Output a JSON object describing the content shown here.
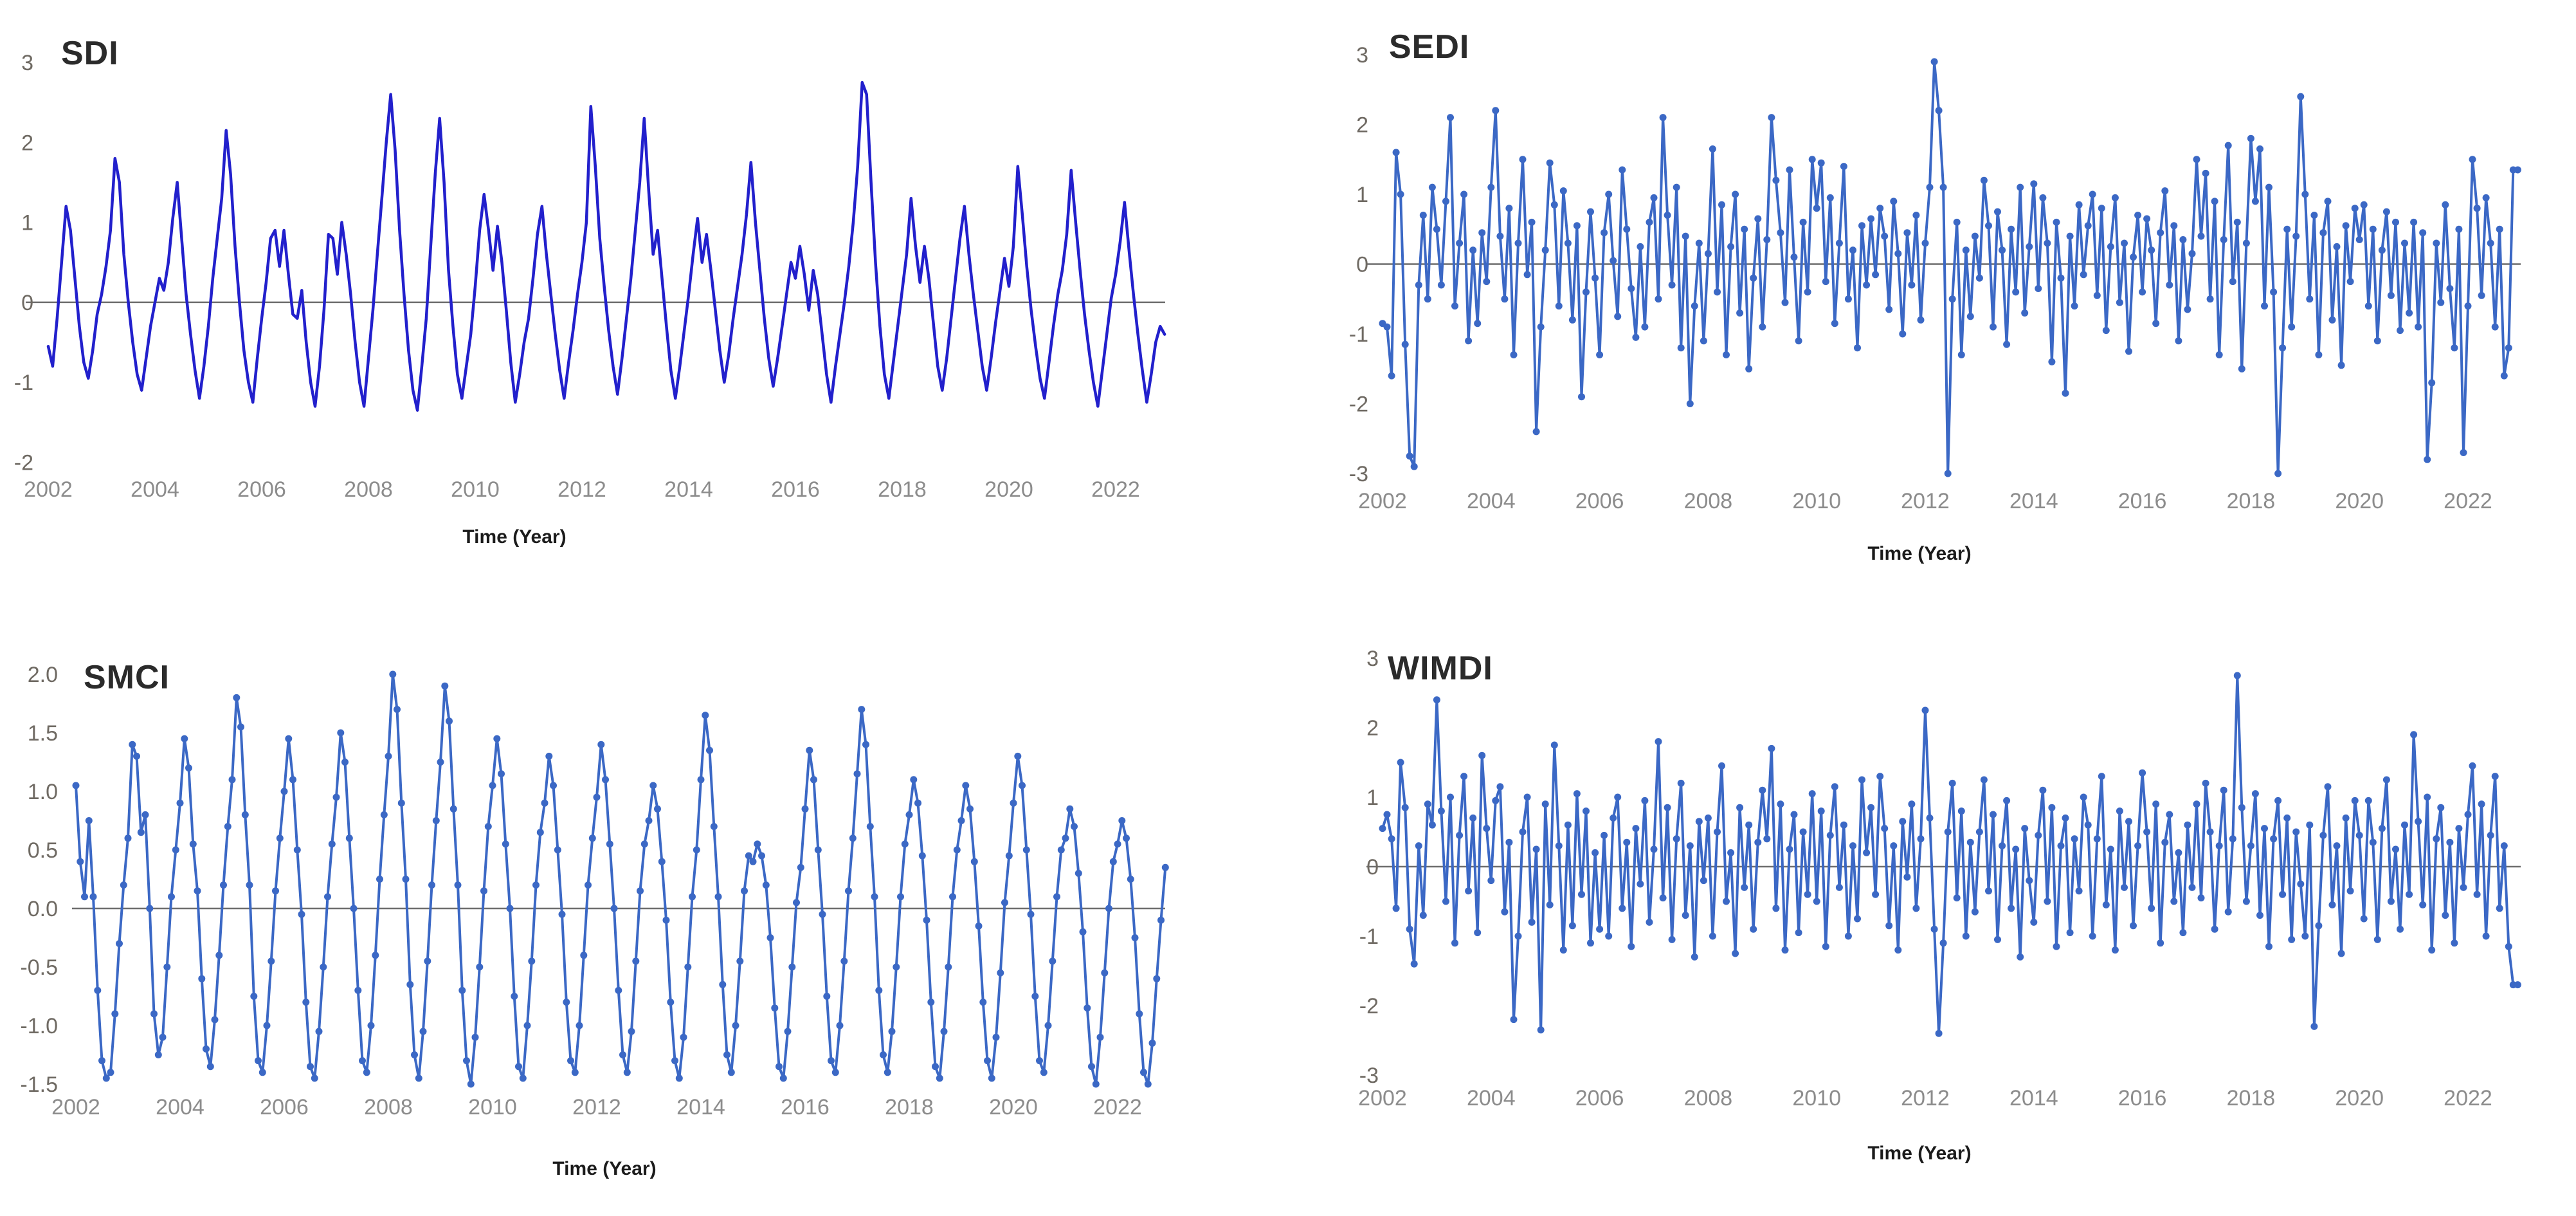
{
  "page": {
    "background": "#ffffff",
    "title_color": "#2b2b2b",
    "ytick_color": "#6f6a63",
    "xtick_color": "#8c8c8c",
    "xlabel_color": "#1b1b1b",
    "zero_line_color": "#6e6e6e"
  },
  "chart_data": [
    {
      "type": "line",
      "title": "SDI",
      "xlabel": "Time (Year)",
      "legend": "none",
      "grid": false,
      "marker": false,
      "line_color": "#2220cc",
      "x_start": 2002.0,
      "points_per_year": 12,
      "xlim": [
        2002,
        2023
      ],
      "ylim": [
        -2,
        3
      ],
      "yticks": [
        3,
        2,
        1,
        0,
        -1,
        -2
      ],
      "ytick_labels": [
        "3",
        "2",
        "1",
        "0",
        "-1",
        "-2"
      ],
      "xticks": [
        2002,
        2004,
        2006,
        2008,
        2010,
        2012,
        2014,
        2016,
        2018,
        2020,
        2022
      ],
      "xtick_labels": [
        "2002",
        "2004",
        "2006",
        "2008",
        "2010",
        "2012",
        "2014",
        "2016",
        "2018",
        "2020",
        "2022"
      ],
      "values": [
        -0.55,
        -0.8,
        -0.2,
        0.5,
        1.2,
        0.9,
        0.3,
        -0.3,
        -0.75,
        -0.95,
        -0.6,
        -0.15,
        0.1,
        0.45,
        0.9,
        1.8,
        1.5,
        0.6,
        0.0,
        -0.5,
        -0.9,
        -1.1,
        -0.7,
        -0.3,
        0.0,
        0.3,
        0.15,
        0.5,
        1.05,
        1.5,
        0.8,
        0.1,
        -0.4,
        -0.85,
        -1.2,
        -0.8,
        -0.3,
        0.3,
        0.8,
        1.3,
        2.15,
        1.6,
        0.7,
        0.0,
        -0.6,
        -1.0,
        -1.25,
        -0.7,
        -0.2,
        0.25,
        0.8,
        0.9,
        0.45,
        0.9,
        0.35,
        -0.15,
        -0.2,
        0.15,
        -0.5,
        -1.0,
        -1.3,
        -0.8,
        -0.1,
        0.85,
        0.8,
        0.35,
        1.0,
        0.6,
        0.1,
        -0.5,
        -1.0,
        -1.3,
        -0.7,
        -0.1,
        0.6,
        1.3,
        2.0,
        2.6,
        1.9,
        0.9,
        0.1,
        -0.6,
        -1.1,
        -1.35,
        -0.8,
        -0.2,
        0.7,
        1.6,
        2.3,
        1.5,
        0.4,
        -0.3,
        -0.9,
        -1.2,
        -0.8,
        -0.4,
        0.2,
        0.9,
        1.35,
        0.9,
        0.4,
        0.95,
        0.5,
        -0.1,
        -0.75,
        -1.25,
        -0.9,
        -0.5,
        -0.2,
        0.3,
        0.85,
        1.2,
        0.6,
        0.1,
        -0.4,
        -0.85,
        -1.2,
        -0.75,
        -0.35,
        0.1,
        0.5,
        1.0,
        2.45,
        1.7,
        0.8,
        0.2,
        -0.35,
        -0.8,
        -1.15,
        -0.7,
        -0.2,
        0.3,
        0.9,
        1.5,
        2.3,
        1.4,
        0.6,
        0.9,
        0.3,
        -0.3,
        -0.85,
        -1.2,
        -0.8,
        -0.35,
        0.1,
        0.6,
        1.05,
        0.5,
        0.85,
        0.4,
        -0.1,
        -0.6,
        -1.0,
        -0.65,
        -0.2,
        0.2,
        0.6,
        1.1,
        1.75,
        1.0,
        0.4,
        -0.2,
        -0.7,
        -1.05,
        -0.7,
        -0.3,
        0.1,
        0.5,
        0.3,
        0.7,
        0.35,
        -0.1,
        0.4,
        0.1,
        -0.4,
        -0.9,
        -1.25,
        -0.8,
        -0.4,
        0.0,
        0.45,
        1.0,
        1.7,
        2.75,
        2.6,
        1.5,
        0.5,
        -0.3,
        -0.9,
        -1.2,
        -0.75,
        -0.3,
        0.15,
        0.6,
        1.3,
        0.7,
        0.25,
        0.7,
        0.3,
        -0.25,
        -0.8,
        -1.1,
        -0.7,
        -0.2,
        0.3,
        0.8,
        1.2,
        0.6,
        0.1,
        -0.35,
        -0.8,
        -1.1,
        -0.7,
        -0.25,
        0.15,
        0.55,
        0.2,
        0.7,
        1.7,
        1.1,
        0.45,
        -0.1,
        -0.55,
        -0.95,
        -1.2,
        -0.75,
        -0.3,
        0.1,
        0.4,
        0.85,
        1.65,
        1.0,
        0.4,
        -0.15,
        -0.6,
        -1.0,
        -1.3,
        -0.85,
        -0.4,
        0.05,
        0.35,
        0.75,
        1.25,
        0.65,
        0.1,
        -0.4,
        -0.85,
        -1.25,
        -0.9,
        -0.5,
        -0.3,
        -0.4
      ]
    },
    {
      "type": "line",
      "title": "SEDI",
      "xlabel": "Time (Year)",
      "legend": "none",
      "grid": false,
      "marker": true,
      "line_color": "#3b68c5",
      "x_start": 2002.0,
      "points_per_year": 12,
      "xlim": [
        2002,
        2023
      ],
      "ylim": [
        -3,
        3
      ],
      "yticks": [
        3,
        2,
        1,
        0,
        -1,
        -2,
        -3
      ],
      "ytick_labels": [
        "3",
        "2",
        "1",
        "0",
        "-1",
        "-2",
        "-3"
      ],
      "xticks": [
        2002,
        2004,
        2006,
        2008,
        2010,
        2012,
        2014,
        2016,
        2018,
        2020,
        2022
      ],
      "xtick_labels": [
        "2002",
        "2004",
        "2006",
        "2008",
        "2010",
        "2012",
        "2014",
        "2016",
        "2018",
        "2020",
        "2022"
      ],
      "values": [
        -0.85,
        -0.9,
        -1.6,
        1.6,
        1.0,
        -1.15,
        -2.75,
        -2.9,
        -0.3,
        0.7,
        -0.5,
        1.1,
        0.5,
        -0.3,
        0.9,
        2.1,
        -0.6,
        0.3,
        1.0,
        -1.1,
        0.2,
        -0.85,
        0.45,
        -0.25,
        1.1,
        2.2,
        0.4,
        -0.5,
        0.8,
        -1.3,
        0.3,
        1.5,
        -0.15,
        0.6,
        -2.4,
        -0.9,
        0.2,
        1.45,
        0.85,
        -0.6,
        1.05,
        0.3,
        -0.8,
        0.55,
        -1.9,
        -0.4,
        0.75,
        -0.2,
        -1.3,
        0.45,
        1.0,
        0.05,
        -0.75,
        1.35,
        0.5,
        -0.35,
        -1.05,
        0.25,
        -0.9,
        0.6,
        0.95,
        -0.5,
        2.1,
        0.7,
        -0.3,
        1.1,
        -1.2,
        0.4,
        -2.0,
        -0.6,
        0.3,
        -1.1,
        0.15,
        1.65,
        -0.4,
        0.85,
        -1.3,
        0.25,
        1.0,
        -0.7,
        0.5,
        -1.5,
        -0.2,
        0.65,
        -0.9,
        0.35,
        2.1,
        1.2,
        0.45,
        -0.55,
        1.35,
        0.1,
        -1.1,
        0.6,
        -0.4,
        1.5,
        0.8,
        1.45,
        -0.25,
        0.95,
        -0.85,
        0.3,
        1.4,
        -0.5,
        0.2,
        -1.2,
        0.55,
        -0.3,
        0.65,
        -0.15,
        0.8,
        0.4,
        -0.65,
        0.9,
        0.15,
        -1.0,
        0.45,
        -0.3,
        0.7,
        -0.8,
        0.3,
        1.1,
        2.9,
        2.2,
        1.1,
        -3.0,
        -0.5,
        0.6,
        -1.3,
        0.2,
        -0.75,
        0.4,
        -0.2,
        1.2,
        0.55,
        -0.9,
        0.75,
        0.2,
        -1.15,
        0.5,
        -0.4,
        1.1,
        -0.7,
        0.25,
        1.15,
        -0.35,
        0.95,
        0.3,
        -1.4,
        0.6,
        -0.2,
        -1.85,
        0.4,
        -0.6,
        0.85,
        -0.15,
        0.55,
        1.0,
        -0.45,
        0.8,
        -0.95,
        0.25,
        0.95,
        -0.55,
        0.3,
        -1.25,
        0.1,
        0.7,
        -0.4,
        0.65,
        0.2,
        -0.85,
        0.45,
        1.05,
        -0.3,
        0.55,
        -1.1,
        0.35,
        -0.65,
        0.15,
        1.5,
        0.4,
        1.3,
        -0.5,
        0.9,
        -1.3,
        0.35,
        1.7,
        -0.25,
        0.6,
        -1.5,
        0.3,
        1.8,
        0.9,
        1.65,
        -0.6,
        1.1,
        -0.4,
        -3.0,
        -1.2,
        0.5,
        -0.9,
        0.4,
        2.4,
        1.0,
        -0.5,
        0.7,
        -1.3,
        0.45,
        0.9,
        -0.8,
        0.25,
        -1.45,
        0.55,
        -0.25,
        0.8,
        0.35,
        0.85,
        -0.6,
        0.5,
        -1.1,
        0.2,
        0.75,
        -0.45,
        0.6,
        -0.95,
        0.3,
        -0.7,
        0.6,
        -0.9,
        0.45,
        -2.8,
        -1.7,
        0.3,
        -0.55,
        0.85,
        -0.35,
        -1.2,
        0.5,
        -2.7,
        -0.6,
        1.5,
        0.8,
        -0.45,
        0.95,
        0.3,
        -0.9,
        0.5,
        -1.6,
        -1.2,
        1.35,
        1.35
      ]
    },
    {
      "type": "line",
      "title": "SMCI",
      "xlabel": "Time (Year)",
      "legend": "none",
      "grid": false,
      "marker": true,
      "line_color": "#3b68c5",
      "x_start": 2002.0,
      "points_per_year": 12,
      "xlim": [
        2002,
        2023
      ],
      "ylim": [
        -1.5,
        2.0
      ],
      "yticks": [
        2.0,
        1.5,
        1.0,
        0.5,
        0.0,
        -0.5,
        -1.0,
        -1.5
      ],
      "ytick_labels": [
        "2.0",
        "1.5",
        "1.0",
        "0.5",
        "0.0",
        "-0.5",
        "-1.0",
        "-1.5"
      ],
      "xticks": [
        2002,
        2004,
        2006,
        2008,
        2010,
        2012,
        2014,
        2016,
        2018,
        2020,
        2022
      ],
      "xtick_labels": [
        "2002",
        "2004",
        "2006",
        "2008",
        "2010",
        "2012",
        "2014",
        "2016",
        "2018",
        "2020",
        "2022"
      ],
      "values": [
        1.05,
        0.4,
        0.1,
        0.75,
        0.1,
        -0.7,
        -1.3,
        -1.45,
        -1.4,
        -0.9,
        -0.3,
        0.2,
        0.6,
        1.4,
        1.3,
        0.65,
        0.8,
        0.0,
        -0.9,
        -1.25,
        -1.1,
        -0.5,
        0.1,
        0.5,
        0.9,
        1.45,
        1.2,
        0.55,
        0.15,
        -0.6,
        -1.2,
        -1.35,
        -0.95,
        -0.4,
        0.2,
        0.7,
        1.1,
        1.8,
        1.55,
        0.8,
        0.2,
        -0.75,
        -1.3,
        -1.4,
        -1.0,
        -0.45,
        0.15,
        0.6,
        1.0,
        1.45,
        1.1,
        0.5,
        -0.05,
        -0.8,
        -1.35,
        -1.45,
        -1.05,
        -0.5,
        0.1,
        0.55,
        0.95,
        1.5,
        1.25,
        0.6,
        0.0,
        -0.7,
        -1.3,
        -1.4,
        -1.0,
        -0.4,
        0.25,
        0.8,
        1.3,
        2.0,
        1.7,
        0.9,
        0.25,
        -0.65,
        -1.25,
        -1.45,
        -1.05,
        -0.45,
        0.2,
        0.75,
        1.25,
        1.9,
        1.6,
        0.85,
        0.2,
        -0.7,
        -1.3,
        -1.5,
        -1.1,
        -0.5,
        0.15,
        0.7,
        1.05,
        1.45,
        1.15,
        0.55,
        0.0,
        -0.75,
        -1.35,
        -1.45,
        -1.0,
        -0.45,
        0.2,
        0.65,
        0.9,
        1.3,
        1.05,
        0.5,
        -0.05,
        -0.8,
        -1.3,
        -1.4,
        -1.0,
        -0.4,
        0.2,
        0.6,
        0.95,
        1.4,
        1.1,
        0.55,
        0.0,
        -0.7,
        -1.25,
        -1.4,
        -1.05,
        -0.45,
        0.15,
        0.55,
        0.75,
        1.05,
        0.85,
        0.4,
        -0.1,
        -0.8,
        -1.3,
        -1.45,
        -1.1,
        -0.5,
        0.1,
        0.5,
        1.1,
        1.65,
        1.35,
        0.7,
        0.1,
        -0.65,
        -1.25,
        -1.4,
        -1.0,
        -0.45,
        0.15,
        0.45,
        0.4,
        0.55,
        0.45,
        0.2,
        -0.25,
        -0.85,
        -1.35,
        -1.45,
        -1.05,
        -0.5,
        0.05,
        0.35,
        0.85,
        1.35,
        1.1,
        0.5,
        -0.05,
        -0.75,
        -1.3,
        -1.4,
        -1.0,
        -0.45,
        0.15,
        0.6,
        1.15,
        1.7,
        1.4,
        0.7,
        0.1,
        -0.7,
        -1.25,
        -1.4,
        -1.05,
        -0.5,
        0.1,
        0.55,
        0.8,
        1.1,
        0.9,
        0.45,
        -0.1,
        -0.8,
        -1.35,
        -1.45,
        -1.05,
        -0.5,
        0.1,
        0.5,
        0.75,
        1.05,
        0.85,
        0.4,
        -0.15,
        -0.8,
        -1.3,
        -1.45,
        -1.1,
        -0.55,
        0.05,
        0.45,
        0.9,
        1.3,
        1.05,
        0.5,
        -0.05,
        -0.75,
        -1.3,
        -1.4,
        -1.0,
        -0.45,
        0.1,
        0.5,
        0.6,
        0.85,
        0.7,
        0.3,
        -0.2,
        -0.85,
        -1.35,
        -1.5,
        -1.1,
        -0.55,
        0.0,
        0.4,
        0.55,
        0.75,
        0.6,
        0.25,
        -0.25,
        -0.9,
        -1.4,
        -1.5,
        -1.15,
        -0.6,
        -0.1,
        0.35
      ]
    },
    {
      "type": "line",
      "title": "WIMDI",
      "xlabel": "Time (Year)",
      "legend": "none",
      "grid": false,
      "marker": true,
      "line_color": "#3b68c5",
      "x_start": 2002.0,
      "points_per_year": 12,
      "xlim": [
        2002,
        2023
      ],
      "ylim": [
        -3,
        3
      ],
      "yticks": [
        3,
        2,
        1,
        0,
        -1,
        -2,
        -3
      ],
      "ytick_labels": [
        "3",
        "2",
        "1",
        "0",
        "-1",
        "-2",
        "-3"
      ],
      "xticks": [
        2002,
        2004,
        2006,
        2008,
        2010,
        2012,
        2014,
        2016,
        2018,
        2020,
        2022
      ],
      "xtick_labels": [
        "2002",
        "2004",
        "2006",
        "2008",
        "2010",
        "2012",
        "2014",
        "2016",
        "2018",
        "2020",
        "2022"
      ],
      "values": [
        0.55,
        0.75,
        0.4,
        -0.6,
        1.5,
        0.85,
        -0.9,
        -1.4,
        0.3,
        -0.7,
        0.9,
        0.6,
        2.4,
        0.8,
        -0.5,
        1.0,
        -1.1,
        0.45,
        1.3,
        -0.35,
        0.7,
        -0.95,
        1.6,
        0.55,
        -0.2,
        0.95,
        1.15,
        -0.65,
        0.35,
        -2.2,
        -1.0,
        0.5,
        1.0,
        -0.8,
        0.25,
        -2.35,
        0.9,
        -0.55,
        1.75,
        0.3,
        -1.2,
        0.6,
        -0.85,
        1.05,
        -0.4,
        0.8,
        -1.1,
        0.2,
        -0.9,
        0.45,
        -1.0,
        0.7,
        1.0,
        -0.6,
        0.35,
        -1.15,
        0.55,
        -0.25,
        0.95,
        -0.8,
        0.25,
        1.8,
        -0.45,
        0.85,
        -1.05,
        0.4,
        1.2,
        -0.7,
        0.3,
        -1.3,
        0.65,
        -0.2,
        0.7,
        -1.0,
        0.5,
        1.45,
        -0.5,
        0.2,
        -1.25,
        0.85,
        -0.3,
        0.6,
        -0.9,
        0.35,
        1.1,
        0.4,
        1.7,
        -0.6,
        0.9,
        -1.2,
        0.25,
        0.75,
        -0.95,
        0.5,
        -0.4,
        1.05,
        -0.5,
        0.8,
        -1.15,
        0.45,
        1.15,
        -0.3,
        0.6,
        -1.0,
        0.3,
        -0.75,
        1.25,
        0.2,
        0.85,
        -0.4,
        1.3,
        0.55,
        -0.85,
        0.3,
        -1.2,
        0.65,
        -0.15,
        0.9,
        -0.6,
        0.4,
        2.25,
        0.7,
        -0.9,
        -2.4,
        -1.1,
        0.5,
        1.2,
        -0.45,
        0.8,
        -1.0,
        0.35,
        -0.65,
        0.5,
        1.25,
        -0.35,
        0.75,
        -1.05,
        0.3,
        0.95,
        -0.6,
        0.25,
        -1.3,
        0.55,
        -0.2,
        -0.8,
        0.45,
        1.1,
        -0.5,
        0.85,
        -1.15,
        0.3,
        0.7,
        -0.95,
        0.4,
        -0.35,
        1.0,
        0.6,
        -1.0,
        0.4,
        1.3,
        -0.55,
        0.25,
        -1.2,
        0.8,
        -0.3,
        0.65,
        -0.85,
        0.3,
        1.35,
        0.5,
        -0.6,
        0.9,
        -1.1,
        0.35,
        0.75,
        -0.5,
        0.2,
        -0.95,
        0.6,
        -0.3,
        0.9,
        -0.45,
        1.2,
        0.5,
        -0.9,
        0.3,
        1.1,
        -0.65,
        0.4,
        2.75,
        0.85,
        -0.5,
        0.3,
        1.05,
        -0.7,
        0.55,
        -1.15,
        0.4,
        0.95,
        -0.4,
        0.7,
        -1.05,
        0.5,
        -0.25,
        -1.0,
        0.6,
        -2.3,
        -0.85,
        0.45,
        1.15,
        -0.55,
        0.3,
        -1.25,
        0.7,
        -0.35,
        0.95,
        0.45,
        -0.75,
        0.95,
        0.35,
        -1.05,
        0.55,
        1.25,
        -0.5,
        0.25,
        -0.9,
        0.6,
        -0.4,
        1.9,
        0.65,
        -0.55,
        1.0,
        -1.2,
        0.4,
        0.85,
        -0.7,
        0.35,
        -1.1,
        0.55,
        -0.3,
        0.75,
        1.45,
        -0.4,
        0.9,
        -1.0,
        0.45,
        1.3,
        -0.6,
        0.3,
        -1.15,
        -1.7,
        -1.7
      ]
    }
  ]
}
